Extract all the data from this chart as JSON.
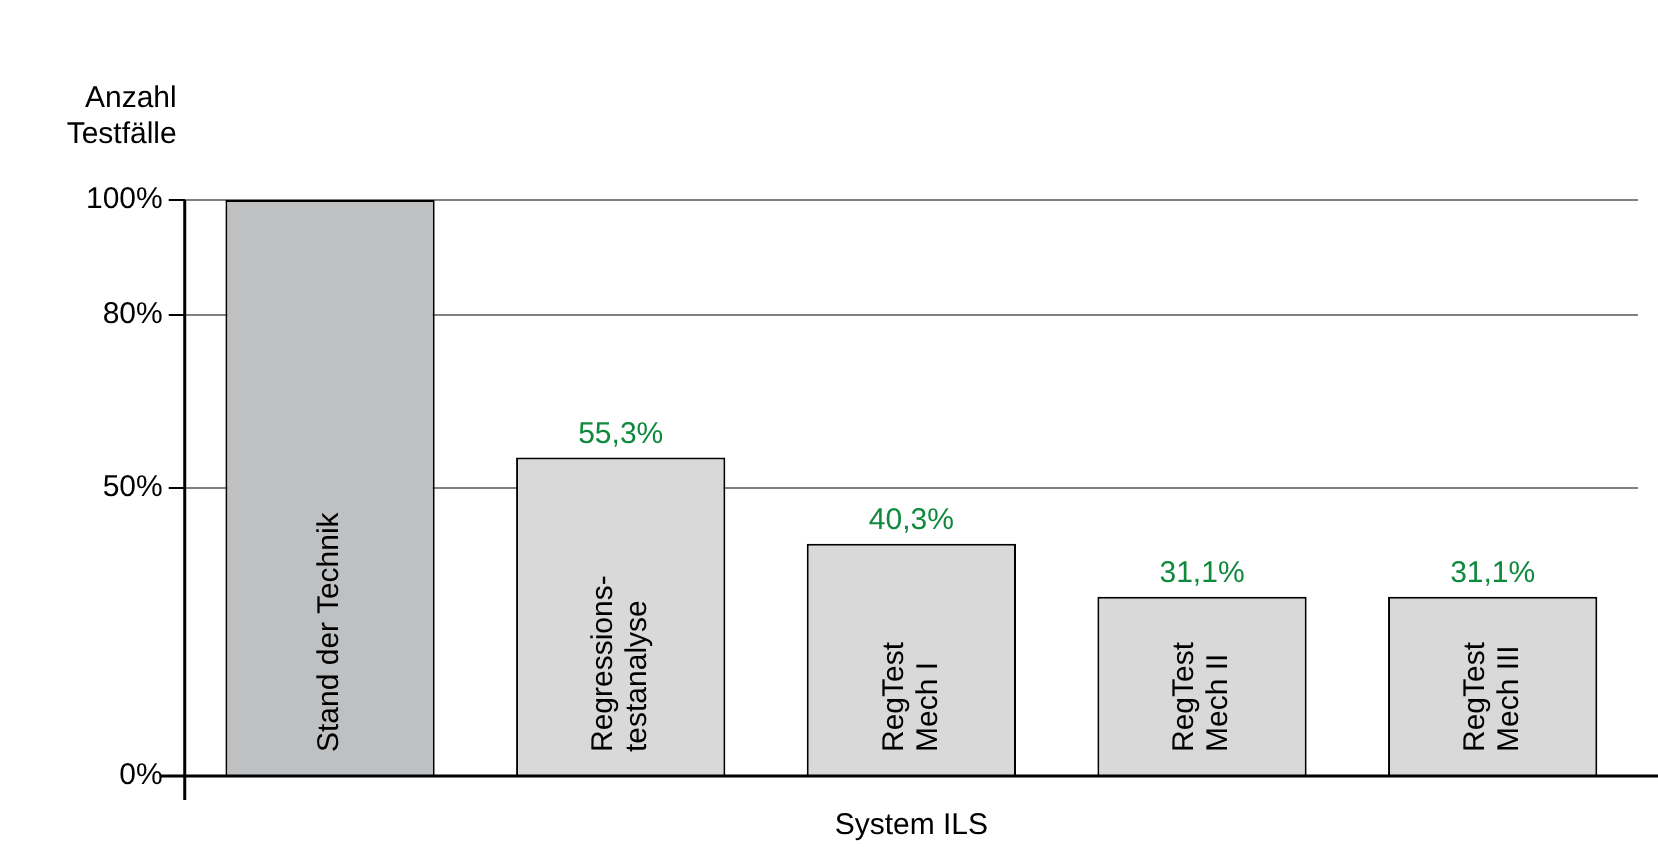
{
  "chart_data": {
    "type": "bar",
    "ylabel": "Anzahl\nTestfälle",
    "xlabel": "System ILS",
    "categories": [
      "Stand der Technik",
      "Regressions-\ntestanalyse",
      "RegTest\nMech I",
      "RegTest\nMech II",
      "RegTest\nMech III"
    ],
    "values": [
      100,
      55.3,
      40.3,
      31.1,
      31.1
    ],
    "colors": [
      "#bfc0c2",
      "#d9d9d9",
      "#d9d9d9",
      "#d9d9d9",
      "#d9d9d9"
    ],
    "value_labels": [
      null,
      "55,3%",
      "40,3%",
      "31,1%",
      "31,1%"
    ],
    "ylim": [
      0,
      100
    ],
    "yticks": [
      {
        "value": 0,
        "label": "0%"
      },
      {
        "value": 50,
        "label": "50%"
      },
      {
        "value": 80,
        "label": "80%"
      },
      {
        "value": 100,
        "label": "100%"
      }
    ],
    "grid": "y",
    "legend": false
  }
}
